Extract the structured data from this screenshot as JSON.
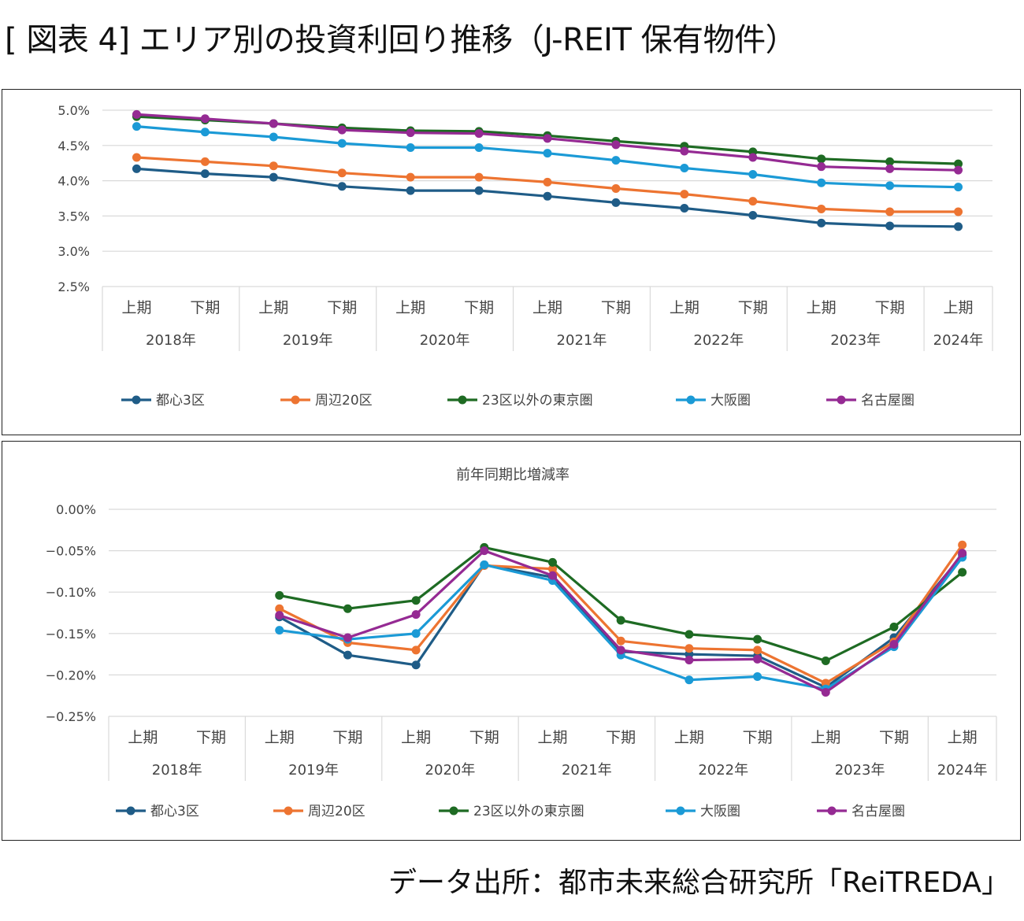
{
  "page": {
    "title": "[ 図表 4] エリア別の投資利回り推移（J-REIT 保有物件）",
    "source": "データ出所：都市未来総合研究所「ReiTREDA」"
  },
  "chart_data": [
    {
      "type": "line",
      "title": "",
      "xlabel": "",
      "ylabel": "",
      "ylim": [
        2.5,
        5.0
      ],
      "yticks": [
        "5.0%",
        "4.5%",
        "4.0%",
        "3.5%",
        "3.0%",
        "2.5%"
      ],
      "grid": true,
      "legend_position": "bottom",
      "categories": [
        "上期",
        "下期",
        "上期",
        "下期",
        "上期",
        "下期",
        "上期",
        "下期",
        "上期",
        "下期",
        "上期",
        "下期",
        "上期"
      ],
      "year_groups": [
        {
          "label": "2018年",
          "span": 2
        },
        {
          "label": "2019年",
          "span": 2
        },
        {
          "label": "2020年",
          "span": 2
        },
        {
          "label": "2021年",
          "span": 2
        },
        {
          "label": "2022年",
          "span": 2
        },
        {
          "label": "2023年",
          "span": 2
        },
        {
          "label": "2024年",
          "span": 1
        }
      ],
      "series": [
        {
          "name": "都心3区",
          "color": "#1f5c87",
          "values": [
            4.17,
            4.1,
            4.05,
            3.92,
            3.86,
            3.86,
            3.78,
            3.69,
            3.61,
            3.51,
            3.4,
            3.36,
            3.35
          ]
        },
        {
          "name": "周辺20区",
          "color": "#ed7431",
          "values": [
            4.33,
            4.27,
            4.21,
            4.11,
            4.05,
            4.05,
            3.98,
            3.89,
            3.81,
            3.71,
            3.6,
            3.56,
            3.56
          ]
        },
        {
          "name": "23区以外の東京圏",
          "color": "#1e6b23",
          "values": [
            4.91,
            4.86,
            4.81,
            4.75,
            4.71,
            4.7,
            4.64,
            4.56,
            4.49,
            4.41,
            4.31,
            4.27,
            4.24
          ]
        },
        {
          "name": "大阪圏",
          "color": "#1b9ad6",
          "values": [
            4.77,
            4.69,
            4.62,
            4.53,
            4.47,
            4.47,
            4.39,
            4.29,
            4.18,
            4.09,
            3.97,
            3.93,
            3.91
          ]
        },
        {
          "name": "名古屋圏",
          "color": "#952a93",
          "values": [
            4.94,
            4.88,
            4.81,
            4.72,
            4.68,
            4.67,
            4.6,
            4.51,
            4.42,
            4.33,
            4.2,
            4.17,
            4.15
          ]
        }
      ]
    },
    {
      "type": "line",
      "title": "前年同期比増減率",
      "xlabel": "",
      "ylabel": "",
      "ylim": [
        -0.25,
        0.0
      ],
      "yticks": [
        "0.00%",
        "−0.05%",
        "−0.10%",
        "−0.15%",
        "−0.20%",
        "−0.25%"
      ],
      "grid": true,
      "legend_position": "bottom",
      "categories": [
        "上期",
        "下期",
        "上期",
        "下期",
        "上期",
        "下期",
        "上期",
        "下期",
        "上期",
        "下期",
        "上期",
        "下期",
        "上期"
      ],
      "year_groups": [
        {
          "label": "2018年",
          "span": 2
        },
        {
          "label": "2019年",
          "span": 2
        },
        {
          "label": "2020年",
          "span": 2
        },
        {
          "label": "2021年",
          "span": 2
        },
        {
          "label": "2022年",
          "span": 2
        },
        {
          "label": "2023年",
          "span": 2
        },
        {
          "label": "2024年",
          "span": 1
        }
      ],
      "series": [
        {
          "name": "都心3区",
          "color": "#1f5c87",
          "values": [
            null,
            null,
            -0.13,
            -0.176,
            -0.188,
            -0.067,
            -0.082,
            -0.172,
            -0.175,
            -0.177,
            -0.215,
            -0.155,
            -0.055
          ]
        },
        {
          "name": "周辺20区",
          "color": "#ed7431",
          "values": [
            null,
            null,
            -0.12,
            -0.161,
            -0.17,
            -0.068,
            -0.072,
            -0.159,
            -0.168,
            -0.17,
            -0.21,
            -0.16,
            -0.043
          ]
        },
        {
          "name": "23区以外の東京圏",
          "color": "#1e6b23",
          "values": [
            null,
            null,
            -0.104,
            -0.12,
            -0.11,
            -0.046,
            -0.064,
            -0.134,
            -0.151,
            -0.157,
            -0.183,
            -0.142,
            -0.076
          ]
        },
        {
          "name": "大阪圏",
          "color": "#1b9ad6",
          "values": [
            null,
            null,
            -0.146,
            -0.157,
            -0.15,
            -0.067,
            -0.086,
            -0.176,
            -0.206,
            -0.202,
            -0.217,
            -0.166,
            -0.058
          ]
        },
        {
          "name": "名古屋圏",
          "color": "#952a93",
          "values": [
            null,
            null,
            -0.128,
            -0.155,
            -0.127,
            -0.05,
            -0.08,
            -0.17,
            -0.182,
            -0.181,
            -0.221,
            -0.163,
            -0.053
          ]
        }
      ]
    }
  ]
}
